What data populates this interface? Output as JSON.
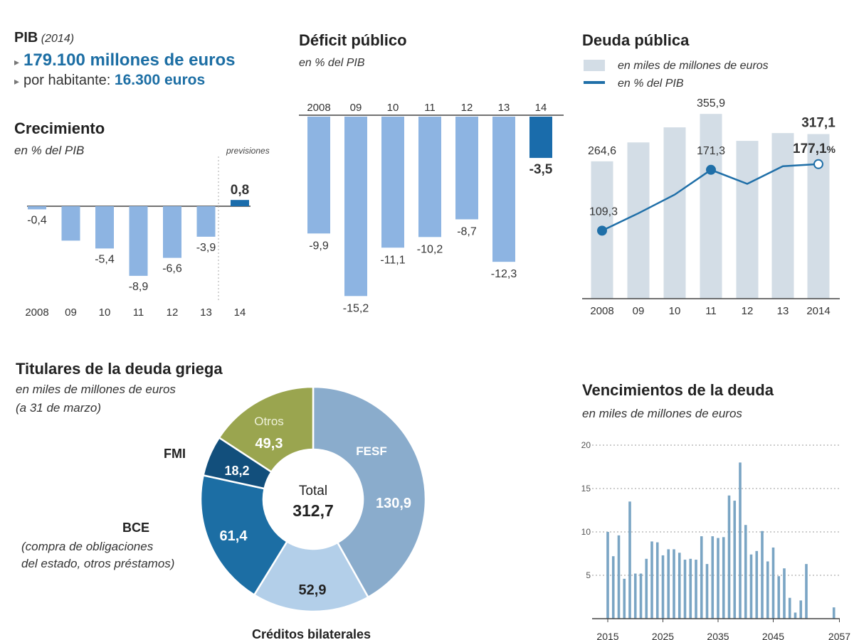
{
  "pib": {
    "label": "PIB",
    "year": "(2014)",
    "total": "179.100 millones de euros",
    "per_capita_label": "por habitante:",
    "per_capita_value": "16.300 euros"
  },
  "colors": {
    "bar": "#8db4e2",
    "bar_highlight": "#1a6cab",
    "debt_bar": "#d3dde6",
    "line": "#1f6fa8",
    "fesf": "#8aaccc",
    "bilateral": "#b3cfe9",
    "bce": "#1c6ea4",
    "fmi": "#124f7c",
    "otros": "#9aa54f",
    "maturity": "#7aa5c4"
  },
  "chart_data": [
    {
      "id": "crecimiento",
      "type": "bar",
      "title": "Crecimiento",
      "subtitle": "en % del PIB",
      "annotation": "previsiones",
      "categories": [
        "2008",
        "09",
        "10",
        "11",
        "12",
        "13",
        "14"
      ],
      "values": [
        -0.4,
        -4.4,
        -5.4,
        -8.9,
        -6.6,
        -3.9,
        0.8
      ],
      "labels": [
        "-0,4",
        "",
        "-5,4",
        "-8,9",
        "-6,6",
        "-3,9",
        "0,8"
      ],
      "ylim": [
        -10,
        1
      ]
    },
    {
      "id": "deficit",
      "type": "bar",
      "title": "Déficit público",
      "subtitle": "en % del PIB",
      "categories": [
        "2008",
        "09",
        "10",
        "11",
        "12",
        "13",
        "14"
      ],
      "values": [
        -9.9,
        -15.2,
        -11.1,
        -10.2,
        -8.7,
        -12.3,
        -3.5
      ],
      "labels": [
        "-9,9",
        "-15,2",
        "-11,1",
        "-10,2",
        "-8,7",
        "-12,3",
        "-3,5"
      ],
      "ylim": [
        -16,
        0
      ]
    },
    {
      "id": "deuda",
      "type": "bar+line",
      "title": "Deuda pública",
      "legend": [
        "en miles de millones de euros",
        "en % del PIB"
      ],
      "categories": [
        "2008",
        "09",
        "10",
        "11",
        "12",
        "13",
        "2014"
      ],
      "bar_values": [
        264.6,
        301,
        330,
        355.9,
        304,
        319,
        317.1
      ],
      "bar_labels": [
        "264,6",
        "",
        "",
        "355,9",
        "",
        "",
        "317,1"
      ],
      "line_values": [
        109.3,
        127,
        146,
        171.3,
        157,
        175,
        177.1
      ],
      "line_labels": [
        "109,3",
        "",
        "",
        "171,3",
        "",
        "",
        "177,1"
      ],
      "line_suffix": "%",
      "bar_ylim": [
        0,
        360
      ],
      "line_ylim": [
        40,
        270
      ]
    },
    {
      "id": "titulares",
      "type": "pie",
      "title": "Titulares de la deuda griega",
      "subtitle": "en miles de millones de euros",
      "subtitle2": "(a 31 de marzo)",
      "center_label": "Total",
      "center_value": "312,7",
      "slices": [
        {
          "name": "FESF",
          "value": 130.9,
          "label": "130,9"
        },
        {
          "name": "Créditos bilaterales",
          "value": 52.9,
          "label": "52,9"
        },
        {
          "name": "BCE",
          "value": 61.4,
          "label": "61,4"
        },
        {
          "name": "FMI",
          "value": 18.2,
          "label": "18,2"
        },
        {
          "name": "Otros",
          "value": 49.3,
          "label": "49,3"
        }
      ],
      "bce_note_1": "(compra de obligaciones",
      "bce_note_2": "del estado,  otros préstamos)"
    },
    {
      "id": "vencimientos",
      "type": "bar",
      "title": "Vencimientos de la deuda",
      "subtitle": "en miles de millones de euros",
      "x_start": 2015,
      "values": [
        10,
        7.2,
        9.6,
        4.6,
        13.5,
        5.2,
        5.2,
        6.9,
        8.9,
        8.8,
        7.3,
        8,
        8,
        7.6,
        6.8,
        6.9,
        6.8,
        9.5,
        6.3,
        9.5,
        9.3,
        9.4,
        14.2,
        13.6,
        18,
        10.8,
        7.4,
        7.8,
        10.1,
        6.6,
        8.2,
        4.9,
        5.8,
        2.4,
        0.7,
        2.1,
        6.3,
        0,
        0,
        0,
        0,
        1.3
      ],
      "yticks": [
        20,
        15,
        10,
        5
      ],
      "xticks": [
        2015,
        2025,
        2035,
        2045,
        2057
      ],
      "ylim": [
        0,
        20
      ]
    }
  ]
}
